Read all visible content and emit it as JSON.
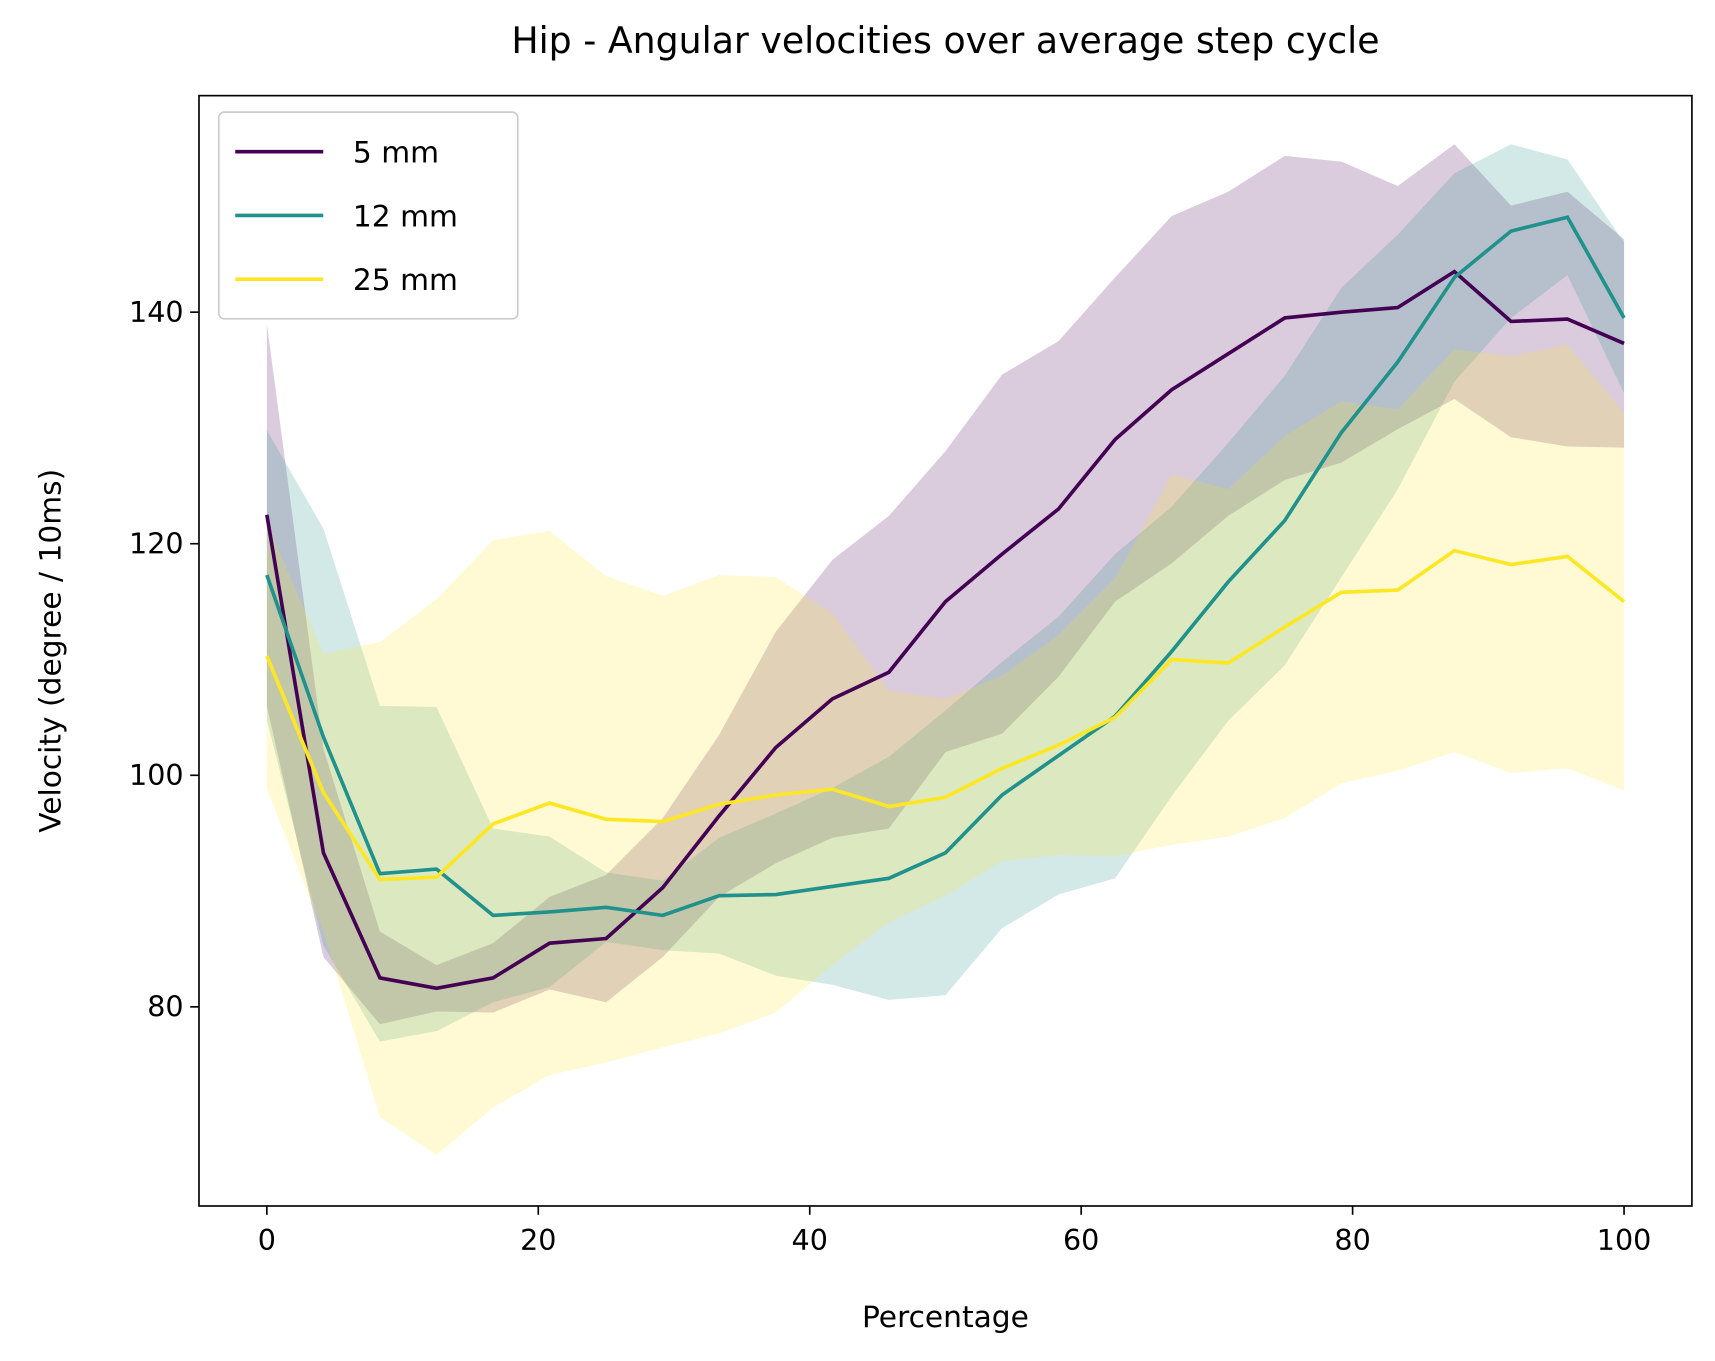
{
  "chart_data": {
    "type": "line",
    "title": "Hip  - Angular velocities over average step cycle",
    "x_label": "Percentage",
    "y_label": "Velocity (degree / 10ms)",
    "x": [
      0,
      4.17,
      8.33,
      12.5,
      16.67,
      20.83,
      25,
      29.17,
      33.33,
      37.5,
      41.67,
      45.83,
      50,
      54.17,
      58.33,
      62.5,
      66.67,
      70.83,
      75,
      79.17,
      83.33,
      87.5,
      91.67,
      95.83,
      100
    ],
    "series": [
      {
        "name": "5 mm",
        "color": "#440154",
        "values": [
          122.5,
          93.3,
          82.5,
          81.6,
          82.5,
          85.5,
          85.9,
          90.3,
          96.5,
          102.4,
          106.6,
          108.9,
          115,
          119.1,
          123,
          129,
          133.3,
          136.4,
          139.5,
          140,
          140.4,
          143.5,
          139.2,
          139.4,
          137.3
        ],
        "std": [
          16.5,
          9,
          4,
          2,
          3,
          4,
          5.5,
          6,
          7,
          10,
          12,
          13.5,
          13,
          15.5,
          14.5,
          14,
          15,
          14,
          14,
          13,
          10.5,
          11,
          10,
          11,
          9
        ]
      },
      {
        "name": "12 mm",
        "color": "#21918c",
        "values": [
          117.3,
          103.3,
          91.5,
          91.9,
          87.9,
          88.2,
          88.6,
          87.9,
          89.6,
          89.7,
          90.4,
          91.1,
          93.3,
          98.3,
          101.7,
          105.1,
          110.7,
          116.7,
          122,
          129.6,
          135.7,
          143,
          147,
          148.2,
          139.5
        ],
        "std": [
          12.5,
          18,
          14.5,
          14,
          7.5,
          6.5,
          3,
          3,
          5,
          7,
          8.5,
          10.5,
          12.3,
          11.5,
          12,
          14,
          12.5,
          12,
          12.5,
          12.5,
          11,
          9,
          7.5,
          5,
          6.5
        ]
      },
      {
        "name": "25 mm",
        "color": "#fde725",
        "values": [
          110.3,
          98.5,
          91,
          91.2,
          95.8,
          97.6,
          96.2,
          96,
          97.5,
          98.3,
          98.8,
          97.3,
          98.1,
          100.6,
          102.6,
          105,
          110,
          109.7,
          112.8,
          115.8,
          116,
          119.4,
          118.2,
          118.9,
          115
        ],
        "std": [
          11.5,
          12,
          20.5,
          24,
          24.5,
          23.5,
          21,
          19.5,
          19.8,
          18.8,
          15.2,
          10,
          8.5,
          8,
          9.5,
          12,
          16,
          15,
          16.5,
          16.5,
          15.6,
          17.4,
          18,
          18.3,
          16.3
        ]
      }
    ],
    "band_opacity": 0.2,
    "xlim": [
      -5,
      105
    ],
    "xticks": [
      0,
      20,
      40,
      60,
      80,
      100
    ],
    "ylim": [
      62.8,
      158.7
    ],
    "yticks": [
      80,
      100,
      120,
      140
    ],
    "legend": "upper left"
  }
}
